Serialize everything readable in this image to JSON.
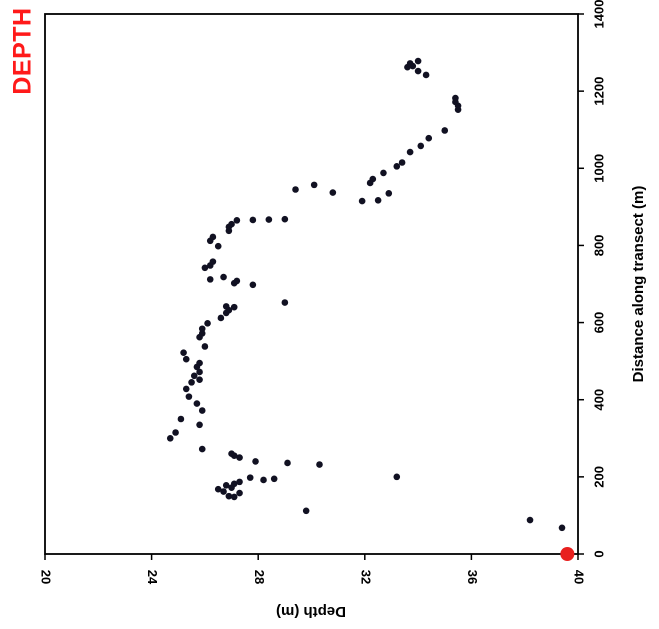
{
  "badge": {
    "text": "DEPTH",
    "color": "#ff1a1a"
  },
  "chart_data": {
    "type": "scatter",
    "orientation": "rotated-90",
    "xlabel": "Distance along transect (m)",
    "ylabel": "Depth (m)",
    "xlim": [
      0,
      1400
    ],
    "ylim": [
      20,
      40
    ],
    "xticks": [
      0,
      200,
      400,
      600,
      800,
      1000,
      1200,
      1400
    ],
    "yticks": [
      20,
      24,
      28,
      32,
      36,
      40
    ],
    "marker_color": "#111122",
    "highlight_color": "#e8201e",
    "highlight_point": {
      "x": 0,
      "y": 39.6
    },
    "points": [
      [
        0,
        39.6
      ],
      [
        68,
        39.4
      ],
      [
        88,
        38.2
      ],
      [
        112,
        29.8
      ],
      [
        148,
        27.1
      ],
      [
        150,
        26.9
      ],
      [
        158,
        27.3
      ],
      [
        162,
        26.7
      ],
      [
        168,
        26.5
      ],
      [
        172,
        27.0
      ],
      [
        178,
        26.8
      ],
      [
        182,
        27.1
      ],
      [
        187,
        27.3
      ],
      [
        192,
        28.2
      ],
      [
        195,
        28.6
      ],
      [
        198,
        27.7
      ],
      [
        200,
        33.2
      ],
      [
        232,
        30.3
      ],
      [
        236,
        29.1
      ],
      [
        240,
        27.9
      ],
      [
        250,
        27.3
      ],
      [
        255,
        27.1
      ],
      [
        260,
        27.0
      ],
      [
        272,
        25.9
      ],
      [
        300,
        24.7
      ],
      [
        315,
        24.9
      ],
      [
        335,
        25.8
      ],
      [
        350,
        25.1
      ],
      [
        372,
        25.9
      ],
      [
        390,
        25.7
      ],
      [
        408,
        25.4
      ],
      [
        428,
        25.3
      ],
      [
        445,
        25.5
      ],
      [
        452,
        25.8
      ],
      [
        462,
        25.6
      ],
      [
        472,
        25.8
      ],
      [
        485,
        25.7
      ],
      [
        495,
        25.8
      ],
      [
        505,
        25.3
      ],
      [
        522,
        25.2
      ],
      [
        538,
        26.0
      ],
      [
        562,
        25.8
      ],
      [
        572,
        25.9
      ],
      [
        584,
        25.9
      ],
      [
        598,
        26.1
      ],
      [
        612,
        26.6
      ],
      [
        625,
        26.8
      ],
      [
        632,
        26.9
      ],
      [
        640,
        27.1
      ],
      [
        642,
        26.8
      ],
      [
        652,
        29.0
      ],
      [
        698,
        27.8
      ],
      [
        702,
        27.1
      ],
      [
        708,
        27.2
      ],
      [
        712,
        26.2
      ],
      [
        718,
        26.7
      ],
      [
        742,
        26.0
      ],
      [
        748,
        26.2
      ],
      [
        758,
        26.3
      ],
      [
        798,
        26.5
      ],
      [
        812,
        26.2
      ],
      [
        822,
        26.3
      ],
      [
        838,
        26.9
      ],
      [
        848,
        26.9
      ],
      [
        855,
        27.0
      ],
      [
        865,
        27.2
      ],
      [
        866,
        27.8
      ],
      [
        867,
        28.4
      ],
      [
        868,
        29.0
      ],
      [
        915,
        31.9
      ],
      [
        917,
        32.5
      ],
      [
        935,
        32.9
      ],
      [
        937,
        30.8
      ],
      [
        945,
        29.4
      ],
      [
        957,
        30.1
      ],
      [
        962,
        32.2
      ],
      [
        972,
        32.3
      ],
      [
        988,
        32.7
      ],
      [
        1005,
        33.2
      ],
      [
        1015,
        33.4
      ],
      [
        1042,
        33.7
      ],
      [
        1058,
        34.1
      ],
      [
        1078,
        34.4
      ],
      [
        1098,
        35.0
      ],
      [
        1152,
        35.5
      ],
      [
        1162,
        35.5
      ],
      [
        1172,
        35.4
      ],
      [
        1182,
        35.4
      ],
      [
        1242,
        34.3
      ],
      [
        1252,
        34.0
      ],
      [
        1262,
        33.6
      ],
      [
        1265,
        33.8
      ],
      [
        1272,
        33.7
      ],
      [
        1278,
        34.0
      ]
    ]
  }
}
